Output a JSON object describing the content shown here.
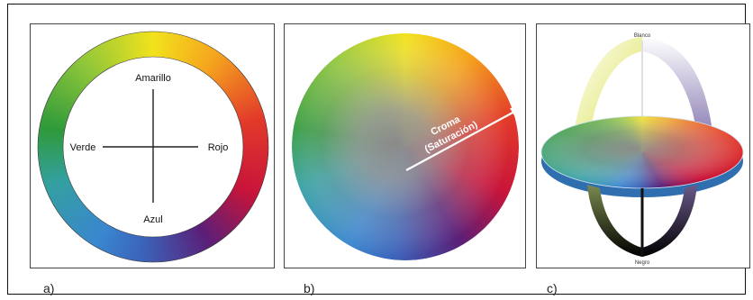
{
  "panel_a": {
    "label_top": "Amarillo",
    "label_left": "Verde",
    "label_right": "Rojo",
    "label_bottom": "Azul",
    "caption": "a)"
  },
  "panel_b": {
    "arrow_label_1": "Croma",
    "arrow_label_2": "(Saturación)",
    "caption": "b)"
  },
  "panel_c": {
    "label_top": "Blanco",
    "label_bottom": "Negro",
    "caption": "c)"
  },
  "colors": {
    "yellow": "#f2e21c",
    "red": "#d8182a",
    "green": "#2f9a3a",
    "blue": "#3a86d0",
    "violet": "#5a1f78"
  }
}
